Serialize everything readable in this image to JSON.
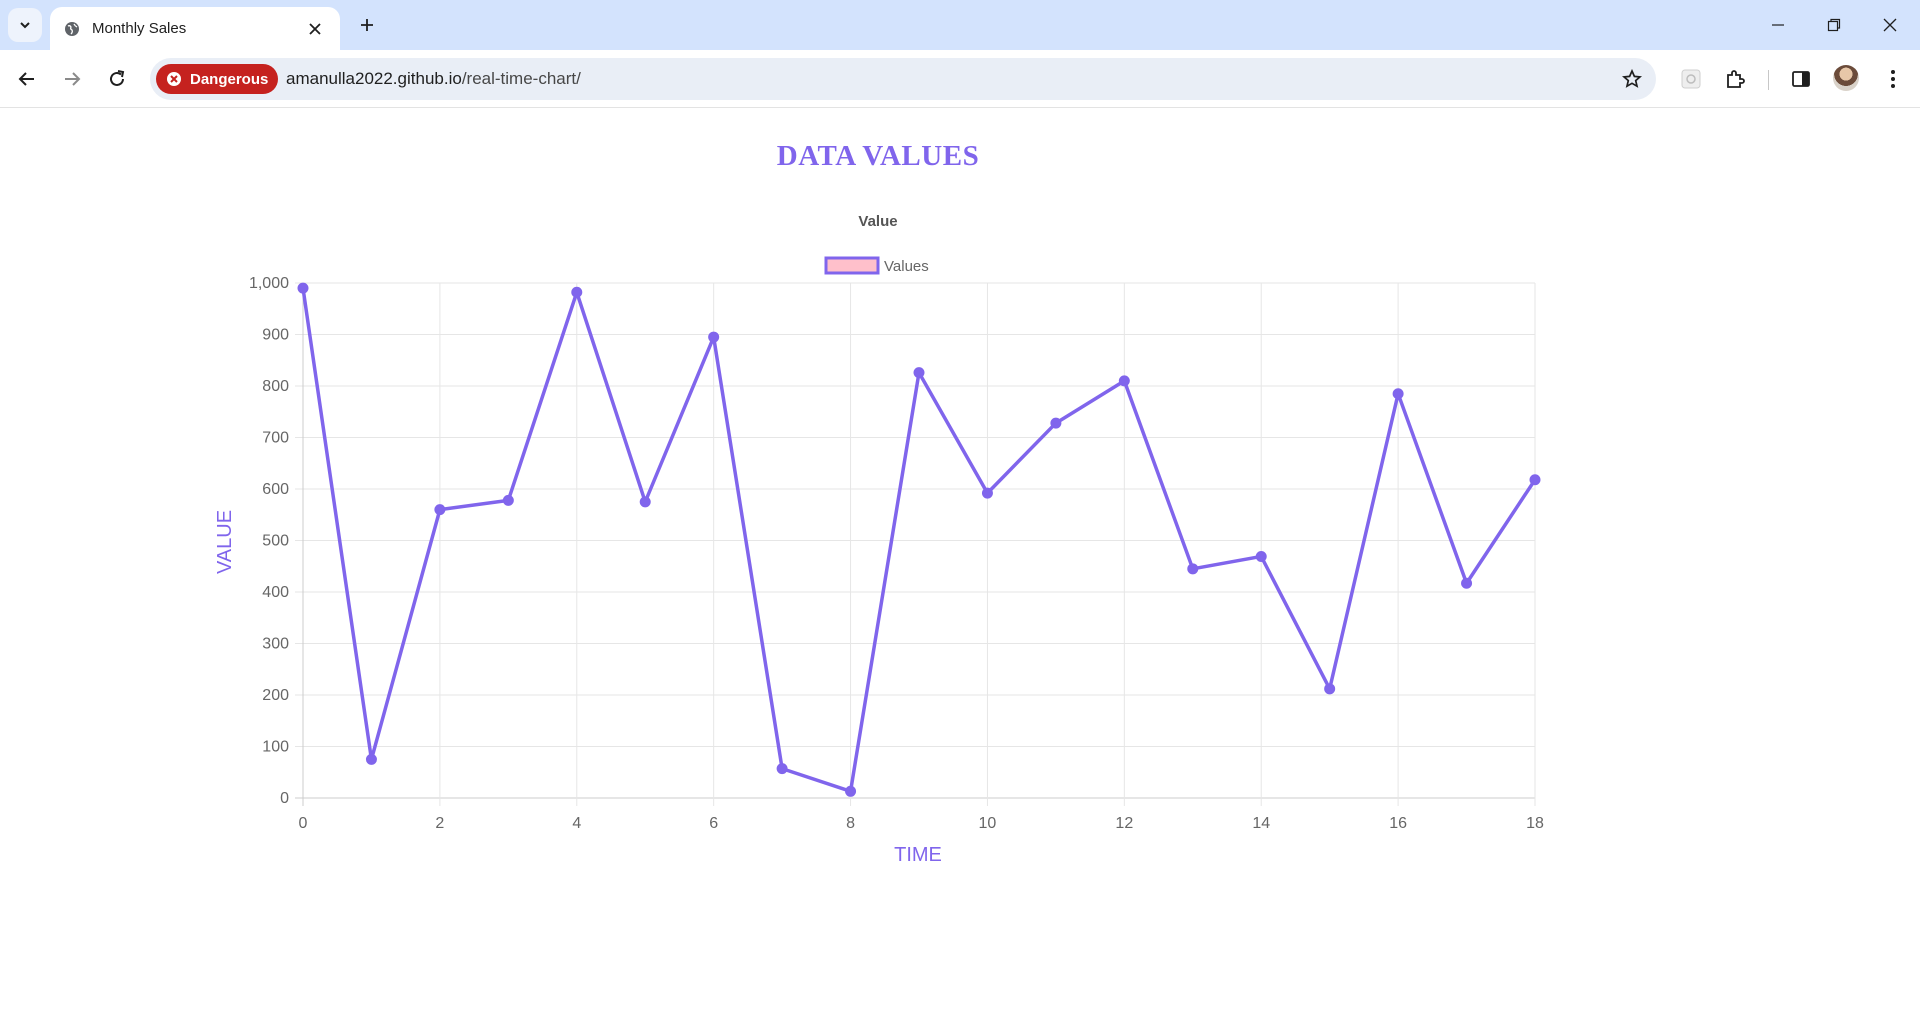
{
  "browser": {
    "tab_title": "Monthly Sales",
    "security_chip": "Dangerous",
    "url_host": "amanulla2022.github.io",
    "url_path": "/real-time-chart/",
    "accent_danger": "#c5221f"
  },
  "page": {
    "heading": "DATA VALUES",
    "heading_color": "#8065ec"
  },
  "chart_data": {
    "type": "line",
    "title": "Value",
    "legend": {
      "entries": [
        "Values"
      ],
      "placement": "top-center",
      "swatch_fill": "#ffc0cb",
      "swatch_border": "#8065ec"
    },
    "xlabel": "TIME",
    "ylabel": "VALUE",
    "x": [
      0,
      1,
      2,
      3,
      4,
      5,
      6,
      7,
      8,
      9,
      10,
      11,
      12,
      13,
      14,
      15,
      16,
      17,
      18
    ],
    "series": [
      {
        "name": "Values",
        "color": "#8065ec",
        "values": [
          990,
          75,
          560,
          578,
          982,
          575,
          895,
          57,
          13,
          826,
          592,
          728,
          810,
          445,
          469,
          212,
          785,
          417,
          618
        ]
      }
    ],
    "xlim": [
      0,
      18
    ],
    "ylim": [
      0,
      1000
    ],
    "x_ticks": [
      "0",
      "2",
      "4",
      "6",
      "8",
      "10",
      "12",
      "14",
      "16",
      "18"
    ],
    "y_ticks": [
      "0",
      "100",
      "200",
      "300",
      "400",
      "500",
      "600",
      "700",
      "800",
      "900",
      "1,000"
    ],
    "grid": true
  }
}
